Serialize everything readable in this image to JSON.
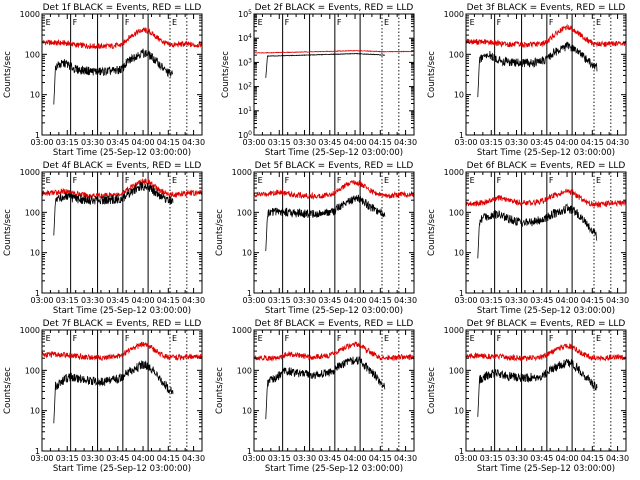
{
  "figure": {
    "colors": {
      "events": "#000000",
      "lld": "#e00000",
      "background": "#ffffff"
    },
    "xaxis": {
      "label": "Start Time (25-Sep-12 03:00:00)",
      "ticks": [
        "03:00",
        "03:15",
        "03:30",
        "03:45",
        "04:00",
        "04:15",
        "04:30"
      ],
      "range_minutes": [
        0,
        95
      ]
    },
    "ylabel": "Counts/sec",
    "marker_lines": {
      "solid_minutes": [
        17,
        33,
        48,
        63
      ],
      "dashed_minutes": [
        76,
        86
      ],
      "labels": [
        {
          "at_minute": 1,
          "text": "E"
        },
        {
          "at_minute": 17,
          "text": "F"
        },
        {
          "at_minute": 48,
          "text": "F"
        },
        {
          "at_minute": 76,
          "text": "E"
        }
      ]
    }
  },
  "chart_data": [
    {
      "type": "line",
      "title": "Det 1f BLACK = Events, RED = LLD",
      "ylog": true,
      "ylim": [
        1,
        1000
      ],
      "yticks": [
        "1",
        "10",
        "100",
        "1000"
      ],
      "x": [
        0,
        5,
        10,
        14,
        17,
        20,
        25,
        30,
        35,
        40,
        45,
        48,
        50,
        55,
        60,
        63,
        66,
        70,
        73,
        75,
        78,
        80,
        82,
        85,
        88,
        91,
        95
      ],
      "series": [
        {
          "name": "LLD",
          "y_start_minute": 0,
          "y_end_minute": 95,
          "values": [
            200,
            195,
            190,
            190,
            185,
            170,
            165,
            160,
            158,
            160,
            165,
            180,
            230,
            330,
            400,
            380,
            310,
            230,
            190,
            175,
            170,
            172,
            178,
            180,
            175,
            170,
            175
          ]
        },
        {
          "name": "Events",
          "y_start_minute": 7,
          "y_end_minute": 78,
          "values": [
            null,
            40,
            55,
            60,
            50,
            42,
            40,
            38,
            37,
            38,
            40,
            45,
            60,
            90,
            110,
            100,
            80,
            55,
            40,
            35,
            30,
            null,
            null,
            null,
            null,
            null,
            null
          ]
        }
      ]
    },
    {
      "type": "line",
      "title": "Det 2f BLACK = Events, RED = LLD",
      "ylog": true,
      "ylim": [
        1,
        100000
      ],
      "yticks": [
        "10^0",
        "10^1",
        "10^2",
        "10^3",
        "10^4",
        "10^5"
      ],
      "x": [
        0,
        5,
        10,
        14,
        17,
        20,
        25,
        30,
        35,
        40,
        45,
        48,
        50,
        55,
        60,
        63,
        66,
        70,
        73,
        75,
        78,
        80,
        82,
        85,
        88,
        91,
        95
      ],
      "series": [
        {
          "name": "LLD",
          "y_start_minute": 0,
          "y_end_minute": 95,
          "values": [
            2500,
            2500,
            2500,
            2550,
            2600,
            2600,
            2650,
            2700,
            2750,
            2800,
            2850,
            2900,
            2950,
            3000,
            3050,
            3000,
            2950,
            2900,
            2850,
            2800,
            2750,
            2750,
            2800,
            2800,
            2800,
            2800,
            2800
          ]
        },
        {
          "name": "Events",
          "y_start_minute": 7,
          "y_end_minute": 78,
          "values": [
            null,
            1800,
            1850,
            1850,
            1900,
            1900,
            1950,
            2000,
            2050,
            2100,
            2150,
            2200,
            2200,
            2250,
            2300,
            2250,
            2200,
            2150,
            2100,
            2050,
            2000,
            null,
            null,
            null,
            null,
            null,
            null
          ]
        }
      ]
    },
    {
      "type": "line",
      "title": "Det 3f BLACK = Events, RED = LLD",
      "ylog": true,
      "ylim": [
        1,
        1000
      ],
      "yticks": [
        "1",
        "10",
        "100",
        "1000"
      ],
      "x": [
        0,
        5,
        10,
        14,
        17,
        20,
        25,
        30,
        35,
        40,
        45,
        48,
        50,
        55,
        60,
        63,
        66,
        70,
        73,
        75,
        78,
        80,
        82,
        85,
        88,
        91,
        95
      ],
      "series": [
        {
          "name": "LLD",
          "y_start_minute": 0,
          "y_end_minute": 95,
          "values": [
            210,
            205,
            200,
            200,
            195,
            185,
            178,
            175,
            172,
            175,
            185,
            200,
            250,
            360,
            470,
            430,
            350,
            260,
            210,
            190,
            180,
            178,
            178,
            182,
            185,
            183,
            185
          ]
        },
        {
          "name": "Events",
          "y_start_minute": 7,
          "y_end_minute": 78,
          "values": [
            null,
            60,
            85,
            95,
            80,
            70,
            65,
            62,
            60,
            62,
            68,
            75,
            95,
            130,
            160,
            150,
            120,
            85,
            65,
            55,
            45,
            null,
            null,
            null,
            null,
            null,
            null
          ]
        }
      ]
    },
    {
      "type": "line",
      "title": "Det 4f BLACK = Events, RED = LLD",
      "ylog": true,
      "ylim": [
        1,
        1000
      ],
      "yticks": [
        "1",
        "10",
        "100",
        "1000"
      ],
      "x": [
        0,
        5,
        10,
        14,
        17,
        20,
        25,
        30,
        35,
        40,
        45,
        48,
        50,
        55,
        60,
        63,
        66,
        70,
        73,
        75,
        78,
        80,
        82,
        85,
        88,
        91,
        95
      ],
      "series": [
        {
          "name": "LLD",
          "y_start_minute": 0,
          "y_end_minute": 95,
          "values": [
            290,
            300,
            320,
            330,
            320,
            290,
            270,
            260,
            260,
            265,
            280,
            300,
            350,
            480,
            600,
            580,
            470,
            350,
            300,
            285,
            275,
            275,
            280,
            290,
            300,
            300,
            310
          ]
        },
        {
          "name": "Events",
          "y_start_minute": 7,
          "y_end_minute": 78,
          "values": [
            null,
            200,
            230,
            240,
            230,
            215,
            205,
            200,
            198,
            200,
            210,
            225,
            265,
            360,
            450,
            430,
            350,
            260,
            220,
            205,
            195,
            null,
            null,
            null,
            null,
            null,
            null
          ]
        }
      ]
    },
    {
      "type": "line",
      "title": "Det 5f BLACK = Events, RED = LLD",
      "ylog": true,
      "ylim": [
        1,
        1000
      ],
      "yticks": [
        "1",
        "10",
        "100",
        "1000"
      ],
      "x": [
        0,
        5,
        10,
        14,
        17,
        20,
        25,
        30,
        35,
        40,
        45,
        48,
        50,
        55,
        60,
        63,
        66,
        70,
        73,
        75,
        78,
        80,
        82,
        85,
        88,
        91,
        95
      ],
      "series": [
        {
          "name": "LLD",
          "y_start_minute": 0,
          "y_end_minute": 95,
          "values": [
            270,
            280,
            300,
            320,
            310,
            290,
            270,
            260,
            255,
            260,
            280,
            310,
            370,
            480,
            560,
            520,
            430,
            330,
            290,
            270,
            260,
            258,
            262,
            270,
            280,
            282,
            285
          ]
        },
        {
          "name": "Events",
          "y_start_minute": 7,
          "y_end_minute": 78,
          "values": [
            null,
            80,
            100,
            110,
            105,
            100,
            95,
            92,
            90,
            93,
            100,
            110,
            135,
            180,
            220,
            210,
            170,
            130,
            110,
            100,
            95,
            null,
            null,
            null,
            null,
            null,
            null
          ]
        }
      ]
    },
    {
      "type": "line",
      "title": "Det 6f BLACK = Events, RED = LLD",
      "ylog": true,
      "ylim": [
        1,
        1000
      ],
      "yticks": [
        "1",
        "10",
        "100",
        "1000"
      ],
      "x": [
        0,
        5,
        10,
        14,
        17,
        20,
        25,
        30,
        35,
        40,
        45,
        48,
        50,
        55,
        60,
        63,
        66,
        70,
        73,
        75,
        78,
        80,
        82,
        85,
        88,
        91,
        95
      ],
      "series": [
        {
          "name": "LLD",
          "y_start_minute": 0,
          "y_end_minute": 95,
          "values": [
            160,
            165,
            175,
            190,
            210,
            230,
            200,
            180,
            170,
            175,
            190,
            210,
            240,
            290,
            330,
            310,
            260,
            200,
            170,
            160,
            155,
            155,
            158,
            165,
            170,
            168,
            170
          ]
        },
        {
          "name": "Events",
          "y_start_minute": 7,
          "y_end_minute": 78,
          "values": [
            null,
            50,
            70,
            85,
            90,
            85,
            70,
            60,
            55,
            58,
            65,
            72,
            85,
            105,
            125,
            115,
            95,
            65,
            45,
            35,
            25,
            null,
            null,
            null,
            null,
            null,
            null
          ]
        }
      ]
    },
    {
      "type": "line",
      "title": "Det 7f BLACK = Events, RED = LLD",
      "ylog": true,
      "ylim": [
        1,
        1000
      ],
      "yticks": [
        "1",
        "10",
        "100",
        "1000"
      ],
      "x": [
        0,
        5,
        10,
        14,
        17,
        20,
        25,
        30,
        35,
        40,
        45,
        48,
        50,
        55,
        60,
        63,
        66,
        70,
        73,
        75,
        78,
        80,
        82,
        85,
        88,
        91,
        95
      ],
      "series": [
        {
          "name": "LLD",
          "y_start_minute": 0,
          "y_end_minute": 95,
          "values": [
            250,
            245,
            240,
            240,
            235,
            225,
            215,
            210,
            205,
            210,
            225,
            250,
            290,
            370,
            450,
            420,
            340,
            260,
            225,
            210,
            205,
            205,
            210,
            215,
            220,
            218,
            220
          ]
        },
        {
          "name": "Events",
          "y_start_minute": 7,
          "y_end_minute": 78,
          "values": [
            null,
            35,
            45,
            60,
            70,
            65,
            60,
            55,
            52,
            55,
            62,
            70,
            85,
            110,
            140,
            130,
            100,
            65,
            45,
            35,
            28,
            null,
            null,
            null,
            null,
            null,
            null
          ]
        }
      ]
    },
    {
      "type": "line",
      "title": "Det 8f BLACK = Events, RED = LLD",
      "ylog": true,
      "ylim": [
        1,
        1000
      ],
      "yticks": [
        "1",
        "10",
        "100",
        "1000"
      ],
      "x": [
        0,
        5,
        10,
        14,
        17,
        20,
        25,
        30,
        35,
        40,
        45,
        48,
        50,
        55,
        60,
        63,
        66,
        70,
        73,
        75,
        78,
        80,
        82,
        85,
        88,
        91,
        95
      ],
      "series": [
        {
          "name": "LLD",
          "y_start_minute": 0,
          "y_end_minute": 95,
          "values": [
            210,
            205,
            200,
            205,
            220,
            260,
            240,
            225,
            215,
            220,
            235,
            260,
            300,
            380,
            450,
            420,
            340,
            260,
            220,
            205,
            200,
            198,
            200,
            205,
            210,
            210,
            212
          ]
        },
        {
          "name": "Events",
          "y_start_minute": 7,
          "y_end_minute": 78,
          "values": [
            null,
            45,
            55,
            70,
            90,
            95,
            85,
            80,
            75,
            80,
            90,
            105,
            125,
            155,
            180,
            165,
            130,
            90,
            65,
            50,
            40,
            null,
            null,
            null,
            null,
            null,
            null
          ]
        }
      ]
    },
    {
      "type": "line",
      "title": "Det 9f BLACK = Events, RED = LLD",
      "ylog": true,
      "ylim": [
        1,
        1000
      ],
      "yticks": [
        "1",
        "10",
        "100",
        "1000"
      ],
      "x": [
        0,
        5,
        10,
        14,
        17,
        20,
        25,
        30,
        35,
        40,
        45,
        48,
        50,
        55,
        60,
        63,
        66,
        70,
        73,
        75,
        78,
        80,
        82,
        85,
        88,
        91,
        95
      ],
      "series": [
        {
          "name": "LLD",
          "y_start_minute": 0,
          "y_end_minute": 95,
          "values": [
            230,
            228,
            225,
            225,
            222,
            215,
            210,
            205,
            202,
            205,
            215,
            235,
            270,
            340,
            410,
            385,
            315,
            245,
            215,
            205,
            200,
            200,
            205,
            210,
            215,
            214,
            215
          ]
        },
        {
          "name": "Events",
          "y_start_minute": 7,
          "y_end_minute": 78,
          "values": [
            null,
            50,
            65,
            80,
            85,
            80,
            72,
            68,
            65,
            68,
            75,
            85,
            100,
            130,
            155,
            145,
            115,
            80,
            58,
            45,
            35,
            null,
            null,
            null,
            null,
            null,
            null
          ]
        }
      ]
    }
  ]
}
